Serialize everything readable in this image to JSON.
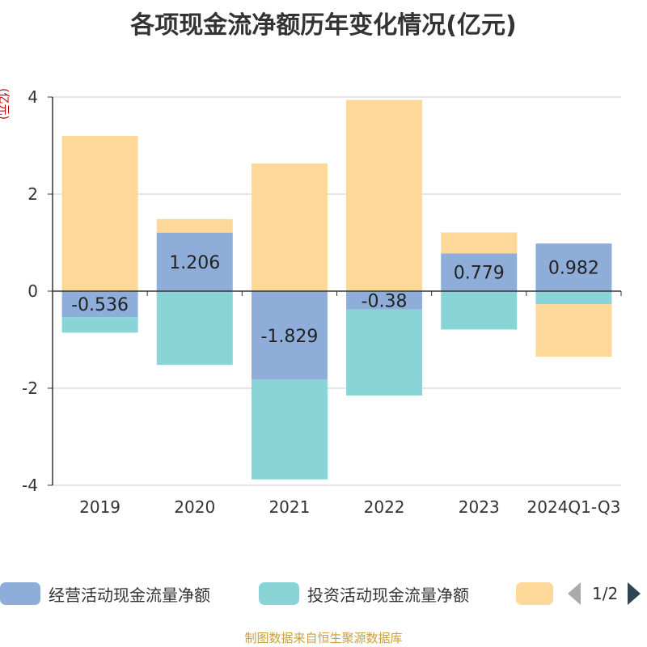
{
  "chart_data": {
    "type": "bar",
    "stacked": true,
    "title": "各项现金流净额历年变化情况(亿元)",
    "ylabel": "(亿元)",
    "categories": [
      "2019",
      "2020",
      "2021",
      "2022",
      "2023",
      "2024Q1-Q3"
    ],
    "ylim": [
      -4,
      4
    ],
    "yticks": [
      4,
      2,
      0,
      -2,
      -4
    ],
    "series": [
      {
        "name": "经营活动现金流量净额",
        "color": "#8eadd9",
        "values": [
          -0.536,
          1.206,
          -1.829,
          -0.38,
          0.779,
          0.982
        ],
        "labels": [
          "-0.536",
          "1.206",
          "-1.829",
          "-0.38",
          "0.779",
          "0.982"
        ]
      },
      {
        "name": "投资活动现金流量净额",
        "color": "#88d4d6",
        "values": [
          -0.32,
          -1.52,
          -2.05,
          -1.77,
          -0.79,
          -0.27
        ]
      },
      {
        "name": "",
        "color": "#fdd898",
        "values": [
          3.2,
          0.28,
          2.63,
          3.94,
          0.43,
          -1.08
        ]
      }
    ]
  },
  "legend": {
    "pager_text": "1/2"
  },
  "footer": "制图数据来自恒生聚源数据库"
}
